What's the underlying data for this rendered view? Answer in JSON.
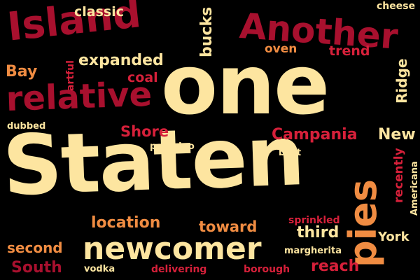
{
  "colors": {
    "background": "#000000",
    "cream": "#FDE5A0",
    "crimson": "#A8102E",
    "red": "#D6203A",
    "orange": "#F08C42",
    "peach": "#F7B78B"
  },
  "words": [
    {
      "key": "staten",
      "text": "Staten",
      "color": "#FDE5A0"
    },
    {
      "key": "one",
      "text": "one",
      "color": "#FDE5A0"
    },
    {
      "key": "island",
      "text": "Island",
      "color": "#A8102E"
    },
    {
      "key": "another",
      "text": "Another",
      "color": "#A8102E"
    },
    {
      "key": "relative",
      "text": "relative",
      "color": "#A8102E"
    },
    {
      "key": "newcomer",
      "text": "newcomer",
      "color": "#FDE5A0"
    },
    {
      "key": "pies",
      "text": "pies",
      "color": "#F08C42"
    },
    {
      "key": "classic",
      "text": "classic",
      "color": "#FDE5A0"
    },
    {
      "key": "cheese",
      "text": "cheese",
      "color": "#FDE5A0"
    },
    {
      "key": "bucks",
      "text": "bucks",
      "color": "#FDE5A0"
    },
    {
      "key": "expanded",
      "text": "expanded",
      "color": "#FDE5A0"
    },
    {
      "key": "oven",
      "text": "oven",
      "color": "#F08C42"
    },
    {
      "key": "trend",
      "text": "trend",
      "color": "#D6203A"
    },
    {
      "key": "ridge",
      "text": "Ridge",
      "color": "#FDE5A0"
    },
    {
      "key": "bay",
      "text": "Bay",
      "color": "#F08C42"
    },
    {
      "key": "artful",
      "text": "artful",
      "color": "#D6203A"
    },
    {
      "key": "coal",
      "text": "coal",
      "color": "#D6203A"
    },
    {
      "key": "dubbed",
      "text": "dubbed",
      "color": "#FDE5A0"
    },
    {
      "key": "shore",
      "text": "Shore",
      "color": "#D6203A"
    },
    {
      "key": "campania",
      "text": "Campania",
      "color": "#D6203A"
    },
    {
      "key": "new",
      "text": "New",
      "color": "#FDE5A0"
    },
    {
      "key": "pecorino",
      "text": "pecorino",
      "color": "#FDE5A0"
    },
    {
      "key": "best",
      "text": "best",
      "color": "#FDE5A0"
    },
    {
      "key": "recently",
      "text": "recently",
      "color": "#D6203A"
    },
    {
      "key": "americana",
      "text": "Americana",
      "color": "#FDE5A0"
    },
    {
      "key": "location",
      "text": "location",
      "color": "#F08C42"
    },
    {
      "key": "toward",
      "text": "toward",
      "color": "#F08C42"
    },
    {
      "key": "sprinkled",
      "text": "sprinkled",
      "color": "#D6203A"
    },
    {
      "key": "third",
      "text": "third",
      "color": "#FDE5A0"
    },
    {
      "key": "york",
      "text": "York",
      "color": "#FDE5A0"
    },
    {
      "key": "second",
      "text": "second",
      "color": "#F08C42"
    },
    {
      "key": "margherita",
      "text": "margherita",
      "color": "#FDE5A0"
    },
    {
      "key": "south",
      "text": "South",
      "color": "#A8102E"
    },
    {
      "key": "vodka",
      "text": "vodka",
      "color": "#FDE5A0"
    },
    {
      "key": "delivering",
      "text": "delivering",
      "color": "#D6203A"
    },
    {
      "key": "borough",
      "text": "borough",
      "color": "#D6203A"
    },
    {
      "key": "reach",
      "text": "reach",
      "color": "#D6203A"
    }
  ]
}
